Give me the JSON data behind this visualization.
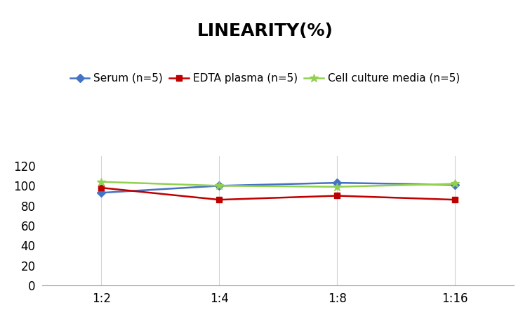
{
  "title": "LINEARITY(%)",
  "x_labels": [
    "1:2",
    "1:4",
    "1:8",
    "1:16"
  ],
  "x_positions": [
    0,
    1,
    2,
    3
  ],
  "series": [
    {
      "label": "Serum (n=5)",
      "color": "#4472C4",
      "marker": "D",
      "marker_size": 6,
      "values": [
        93,
        100,
        103,
        101
      ]
    },
    {
      "label": "EDTA plasma (n=5)",
      "color": "#C00000",
      "marker": "s",
      "marker_size": 6,
      "values": [
        98,
        86,
        90,
        86
      ]
    },
    {
      "label": "Cell culture media (n=5)",
      "color": "#92D050",
      "marker": "*",
      "marker_size": 9,
      "values": [
        104,
        100,
        99,
        102
      ]
    }
  ],
  "ylim": [
    0,
    130
  ],
  "yticks": [
    0,
    20,
    40,
    60,
    80,
    100,
    120
  ],
  "title_fontsize": 18,
  "legend_fontsize": 11,
  "tick_fontsize": 12,
  "background_color": "#ffffff",
  "grid_color": "#d3d3d3",
  "line_width": 1.8
}
